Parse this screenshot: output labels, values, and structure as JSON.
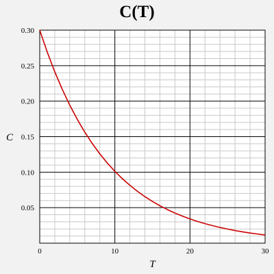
{
  "chart_data": {
    "type": "line",
    "title": "C(T)",
    "xlabel": "T",
    "ylabel": "C",
    "xlim": [
      0,
      30
    ],
    "ylim": [
      0.0,
      0.3
    ],
    "grid": true,
    "x_ticks": [
      "0",
      "10",
      "20",
      "30"
    ],
    "y_ticks": [
      "0.05",
      "0.10",
      "0.15",
      "0.20",
      "0.25",
      "0.30"
    ],
    "series": [
      {
        "x": [
          0,
          1,
          2,
          3,
          4,
          5,
          6,
          7,
          8,
          9,
          10,
          11,
          12,
          13,
          14,
          15,
          16,
          17,
          18,
          19,
          20,
          21,
          22,
          23,
          24,
          25,
          26,
          27,
          28,
          29,
          30
        ],
        "values": [
          0.3,
          0.2691,
          0.2414,
          0.2166,
          0.1943,
          0.1743,
          0.1563,
          0.1402,
          0.1258,
          0.1128,
          0.1012,
          0.0908,
          0.0815,
          0.0731,
          0.0655,
          0.0588,
          0.0527,
          0.0473,
          0.0424,
          0.0381,
          0.0341,
          0.0306,
          0.0275,
          0.0247,
          0.0221,
          0.0199,
          0.0178,
          0.016,
          0.0143,
          0.0129,
          0.0115
        ],
        "color": "#cc0000"
      }
    ]
  }
}
